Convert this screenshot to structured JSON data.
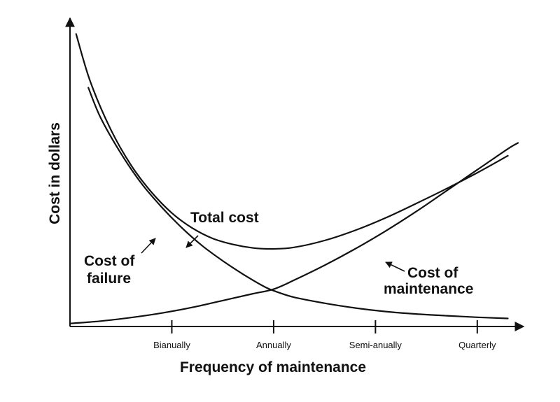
{
  "chart_data": {
    "type": "line",
    "title": "",
    "xlabel": "Frequency of maintenance",
    "ylabel": "Cost in dollars",
    "categories": [
      "Bianually",
      "Annually",
      "Semi-anually",
      "Quarterly"
    ],
    "x_ticks": [
      1,
      2,
      3,
      4
    ],
    "xlim": [
      0,
      4.4
    ],
    "ylim": [
      0,
      10
    ],
    "grid": false,
    "legend": "none",
    "series": [
      {
        "name": "Total cost",
        "x": [
          0.06,
          0.2,
          0.4,
          0.6,
          0.8,
          1.0,
          1.2,
          1.4,
          1.6,
          1.8,
          2.0,
          2.2,
          2.5,
          2.8,
          3.1,
          3.4,
          3.7,
          4.0,
          4.3
        ],
        "y": [
          9.8,
          8.2,
          6.6,
          5.4,
          4.5,
          3.8,
          3.3,
          2.95,
          2.75,
          2.63,
          2.6,
          2.65,
          2.88,
          3.22,
          3.64,
          4.12,
          4.62,
          5.15,
          5.72
        ]
      },
      {
        "name": "Cost of failure",
        "x": [
          0.18,
          0.3,
          0.5,
          0.7,
          0.9,
          1.1,
          1.3,
          1.5,
          1.7,
          1.9,
          2.0,
          2.2,
          2.5,
          2.8,
          3.1,
          3.4,
          3.7,
          4.0,
          4.3
        ],
        "y": [
          8.0,
          7.0,
          5.8,
          4.8,
          4.0,
          3.3,
          2.7,
          2.2,
          1.75,
          1.35,
          1.2,
          0.98,
          0.78,
          0.62,
          0.5,
          0.42,
          0.36,
          0.31,
          0.27
        ]
      },
      {
        "name": "Cost of maintenance",
        "x": [
          0.0,
          0.3,
          0.6,
          0.9,
          1.2,
          1.5,
          1.8,
          2.0,
          2.2,
          2.5,
          2.8,
          3.1,
          3.4,
          3.7,
          4.0,
          4.3,
          4.4
        ],
        "y": [
          0.1,
          0.18,
          0.3,
          0.45,
          0.64,
          0.87,
          1.1,
          1.25,
          1.55,
          2.05,
          2.6,
          3.2,
          3.85,
          4.55,
          5.25,
          5.95,
          6.15
        ]
      }
    ],
    "annotations": {
      "total_cost": "Total cost",
      "cost_of_failure": [
        "Cost of",
        "failure"
      ],
      "cost_of_maintenance": [
        "Cost of",
        "maintenance"
      ]
    }
  }
}
